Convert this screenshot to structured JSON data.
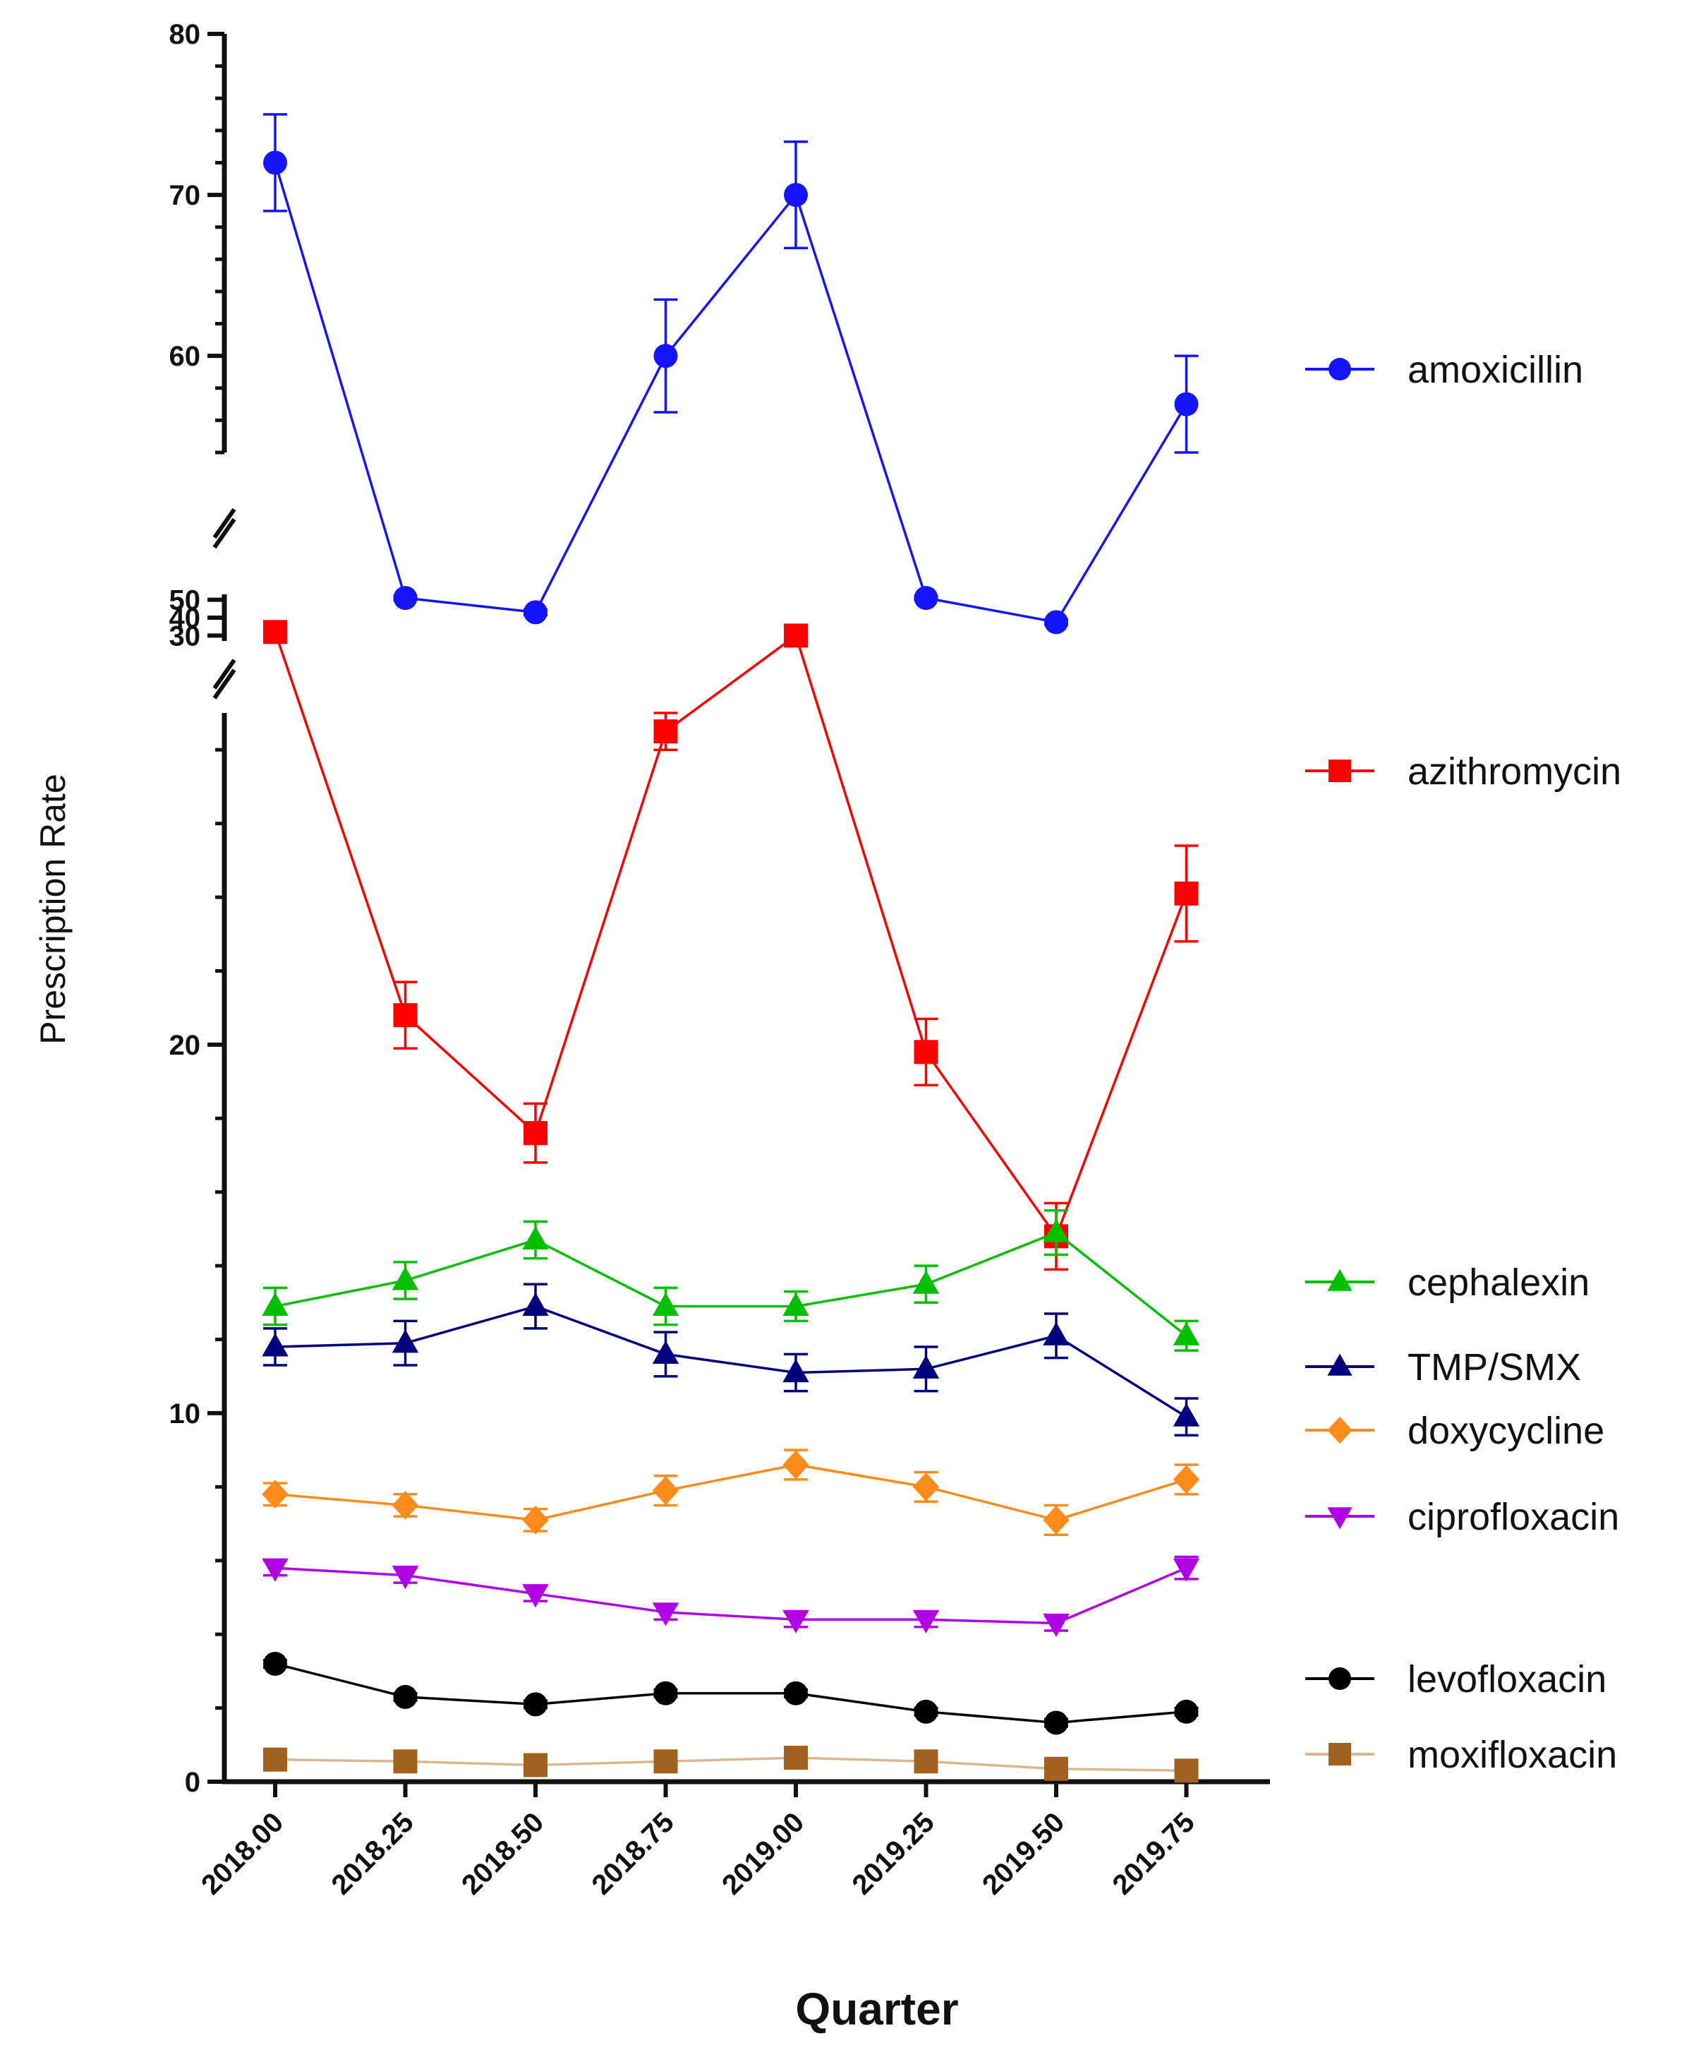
{
  "chart_data": {
    "type": "line",
    "title": "",
    "xlabel": "Quarter",
    "ylabel": "Prescription Rate",
    "x": [
      2018.0,
      2018.25,
      2018.5,
      2018.75,
      2019.0,
      2019.25,
      2019.5,
      2019.75
    ],
    "x_tick_labels": [
      "2018.00",
      "2018.25",
      "2018.50",
      "2018.75",
      "2019.00",
      "2019.25",
      "2019.50",
      "2019.75"
    ],
    "y_axis_segments": [
      {
        "range": [
          0,
          29
        ],
        "ticks": [
          0,
          10,
          20
        ],
        "minor_step": 2
      },
      {
        "range": [
          27,
          53
        ],
        "ticks": [
          30,
          40,
          50
        ]
      },
      {
        "range": [
          54,
          80
        ],
        "ticks": [
          60,
          70,
          80
        ],
        "minor_step": 2
      }
    ],
    "legend_position": "right",
    "series": [
      {
        "name": "amoxicillin",
        "color": "#1414ff",
        "marker": "circle",
        "values": [
          72,
          51,
          43,
          60,
          70,
          51,
          37.5,
          57
        ],
        "errors": [
          3,
          1,
          1.5,
          3.5,
          3.3,
          1,
          1.5,
          3
        ]
      },
      {
        "name": "azithromycin",
        "color": "#ff0000",
        "marker": "square",
        "values": [
          32,
          20.8,
          17.6,
          28.5,
          30,
          19.8,
          14.8,
          24.1
        ],
        "errors": [
          0.5,
          0.9,
          0.8,
          0.5,
          0.5,
          0.9,
          0.9,
          1.3
        ]
      },
      {
        "name": "cephalexin",
        "color": "#00c000",
        "marker": "triangle-up",
        "values": [
          12.9,
          13.6,
          14.7,
          12.9,
          12.9,
          13.5,
          14.9,
          12.1
        ],
        "errors": [
          0.5,
          0.5,
          0.5,
          0.5,
          0.4,
          0.5,
          0.6,
          0.4
        ]
      },
      {
        "name": "TMP/SMX",
        "color": "#00007f",
        "marker": "triangle-up",
        "values": [
          11.8,
          11.9,
          12.9,
          11.6,
          11.1,
          11.2,
          12.1,
          9.9
        ],
        "errors": [
          0.5,
          0.6,
          0.6,
          0.6,
          0.5,
          0.6,
          0.6,
          0.5
        ]
      },
      {
        "name": "doxycycline",
        "color": "#ff8c1a",
        "marker": "diamond",
        "values": [
          7.8,
          7.5,
          7.1,
          7.9,
          8.6,
          8.0,
          7.1,
          8.2
        ],
        "errors": [
          0.3,
          0.3,
          0.3,
          0.4,
          0.4,
          0.4,
          0.4,
          0.4
        ]
      },
      {
        "name": "ciprofloxacin",
        "color": "#b000e6",
        "marker": "triangle-down",
        "values": [
          5.8,
          5.6,
          5.1,
          4.6,
          4.4,
          4.4,
          4.3,
          5.8
        ],
        "errors": [
          0.2,
          0.2,
          0.2,
          0.2,
          0.2,
          0.2,
          0.2,
          0.3
        ]
      },
      {
        "name": "levofloxacin",
        "color": "#000000",
        "marker": "circle",
        "values": [
          3.2,
          2.3,
          2.1,
          2.4,
          2.4,
          1.9,
          1.6,
          1.9
        ],
        "errors": [
          0.1,
          0.1,
          0.1,
          0.1,
          0.1,
          0.1,
          0.1,
          0.1
        ]
      },
      {
        "name": "moxifloxacin",
        "color": "#a0621e",
        "line_color": "#d9b890",
        "marker": "square",
        "values": [
          0.6,
          0.55,
          0.45,
          0.55,
          0.65,
          0.55,
          0.35,
          0.3
        ],
        "errors": [
          0.05,
          0.05,
          0.05,
          0.05,
          0.05,
          0.05,
          0.05,
          0.05
        ]
      }
    ]
  }
}
